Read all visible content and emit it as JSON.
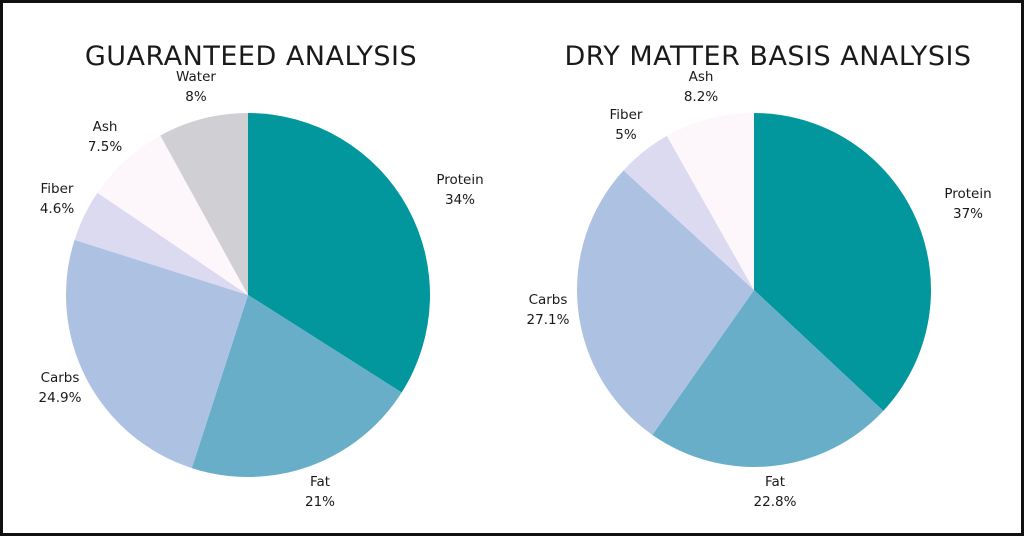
{
  "chart_data": [
    {
      "type": "pie",
      "title": "GUARANTEED ANALYSIS",
      "slices": [
        {
          "label": "Protein",
          "value": 34,
          "value_label": "34%",
          "color": "#02979c"
        },
        {
          "label": "Fat",
          "value": 21,
          "value_label": "21%",
          "color": "#69aec9"
        },
        {
          "label": "Carbs",
          "value": 24.9,
          "value_label": "24.9%",
          "color": "#adc2e3"
        },
        {
          "label": "Fiber",
          "value": 4.6,
          "value_label": "4.6%",
          "color": "#dcdaf1"
        },
        {
          "label": "Ash",
          "value": 7.5,
          "value_label": "7.5%",
          "color": "#fdf7fc"
        },
        {
          "label": "Water",
          "value": 8,
          "value_label": "8%",
          "color": "#cfcfd4"
        }
      ],
      "start_angle_deg": 0,
      "direction": "clockwise"
    },
    {
      "type": "pie",
      "title": "DRY MATTER BASIS ANALYSIS",
      "slices": [
        {
          "label": "Protein",
          "value": 37,
          "value_label": "37%",
          "color": "#02979c"
        },
        {
          "label": "Fat",
          "value": 22.8,
          "value_label": "22.8%",
          "color": "#69aec9"
        },
        {
          "label": "Carbs",
          "value": 27.1,
          "value_label": "27.1%",
          "color": "#adc2e3"
        },
        {
          "label": "Fiber",
          "value": 5,
          "value_label": "5%",
          "color": "#dcdaf1"
        },
        {
          "label": "Ash",
          "value": 8.2,
          "value_label": "8.2%",
          "color": "#fdf7fc"
        }
      ],
      "start_angle_deg": 0,
      "direction": "clockwise"
    }
  ]
}
